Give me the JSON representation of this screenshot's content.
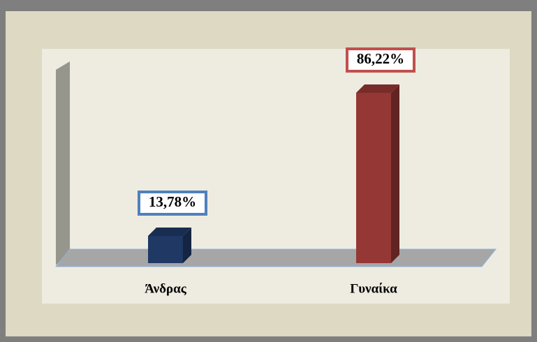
{
  "chart_data": {
    "type": "bar3d",
    "categories": [
      "Άνδρας",
      "Γυναίκα"
    ],
    "values": [
      13.78,
      86.22
    ],
    "value_labels": [
      "13,78%",
      "86,22%"
    ],
    "colors": [
      "#1f3864",
      "#953735"
    ],
    "label_border_colors": [
      "#4f81bd",
      "#c0504d"
    ]
  }
}
